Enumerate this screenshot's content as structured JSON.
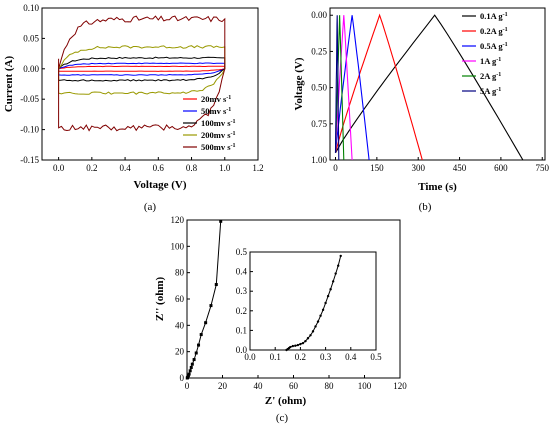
{
  "chart_data": [
    {
      "type": "line",
      "panel_label": "(a)",
      "xlabel": "Voltage (V)",
      "ylabel": "Current (A)",
      "xlim": [
        -0.1,
        1.2
      ],
      "ylim": [
        -0.15,
        0.1
      ],
      "x_ticks": [
        "0.0",
        "0.2",
        "0.4",
        "0.6",
        "0.8",
        "1.0",
        "1.2"
      ],
      "y_ticks": [
        "0.10",
        "0.05",
        "0.00",
        "-0.05",
        "-0.10",
        "-0.15"
      ],
      "legend": {
        "position": "bottom-right",
        "entries": [
          {
            "text": "20mv s",
            "sup": "-1"
          },
          {
            "text": "50mv s",
            "sup": "-1"
          },
          {
            "text": "100mv s",
            "sup": "-1"
          },
          {
            "text": "200mv s",
            "sup": "-1"
          },
          {
            "text": "500mv s",
            "sup": "-1"
          }
        ]
      },
      "series": [
        {
          "name": "20mv s-1",
          "color": "#ff0000",
          "upper": 0.004,
          "lower": -0.004
        },
        {
          "name": "50mv s-1",
          "color": "#0000ff",
          "upper": 0.009,
          "lower": -0.01
        },
        {
          "name": "100mv s-1",
          "color": "#000000",
          "upper": 0.018,
          "lower": -0.019
        },
        {
          "name": "200mv s-1",
          "color": "#999900",
          "upper": 0.036,
          "lower": -0.04
        },
        {
          "name": "500mv s-1",
          "color": "#800000",
          "upper": 0.082,
          "lower": -0.097
        }
      ]
    },
    {
      "type": "line",
      "panel_label": "(b)",
      "xlabel": "Time (s)",
      "ylabel": "Voltage (V)",
      "xlim": [
        -20,
        760
      ],
      "ylim": [
        0,
        1.05
      ],
      "x_ticks": [
        "0",
        "150",
        "300",
        "450",
        "600",
        "750"
      ],
      "y_ticks": [
        "0.00",
        "0.25",
        "0.50",
        "0.75",
        "1.00"
      ],
      "legend": {
        "position": "top-right",
        "entries": [
          {
            "text": "0.1A g",
            "sup": "-1"
          },
          {
            "text": "0.2A g",
            "sup": "-1"
          },
          {
            "text": "0.5A g",
            "sup": "-1"
          },
          {
            "text": "1A g",
            "sup": "-1"
          },
          {
            "text": "2A g",
            "sup": "-1"
          },
          {
            "text": "5A g",
            "sup": "-1"
          }
        ]
      },
      "series": [
        {
          "name": "0.1A g-1",
          "color": "#000000",
          "peak": 360,
          "end": 680
        },
        {
          "name": "0.2A g-1",
          "color": "#ff0000",
          "peak": 160,
          "end": 315
        },
        {
          "name": "0.5A g-1",
          "color": "#0000ff",
          "peak": 60,
          "end": 122
        },
        {
          "name": "1A g-1",
          "color": "#ff00ff",
          "peak": 30,
          "end": 60
        },
        {
          "name": "2A g-1",
          "color": "#008000",
          "peak": 15,
          "end": 30
        },
        {
          "name": "5A g-1",
          "color": "#000080",
          "peak": 6,
          "end": 12
        }
      ]
    },
    {
      "type": "scatter",
      "panel_label": "(c)",
      "xlabel": "Z' (ohm)",
      "ylabel": "Z'' (ohm)",
      "xlim": [
        0,
        120
      ],
      "ylim": [
        0,
        120
      ],
      "x_ticks": [
        "0",
        "20",
        "40",
        "60",
        "80",
        "100",
        "120"
      ],
      "y_ticks": [
        "0",
        "20",
        "40",
        "60",
        "80",
        "100",
        "120"
      ],
      "series": [
        {
          "name": "",
          "color": "#000000",
          "x": [
            0.15,
            0.3,
            0.5,
            0.8,
            1.2,
            1.8,
            2.4,
            3.0,
            4.0,
            5.2,
            6.5,
            8.0,
            10.5,
            13.5,
            16.5,
            19.0
          ],
          "y": [
            0.0,
            0.3,
            0.8,
            1.8,
            3.0,
            5.5,
            8.0,
            10.5,
            14.0,
            19.0,
            25.0,
            33.0,
            42.0,
            55.0,
            71.0,
            119.0
          ]
        }
      ],
      "inset": {
        "xlim": [
          0,
          0.5
        ],
        "ylim": [
          0,
          0.5
        ],
        "x_ticks": [
          "0.0",
          "0.1",
          "0.2",
          "0.3",
          "0.4",
          "0.5"
        ],
        "y_ticks": [
          "0.0",
          "0.1",
          "0.2",
          "0.3",
          "0.4",
          "0.5"
        ],
        "x": [
          0.145,
          0.15,
          0.155,
          0.16,
          0.17,
          0.18,
          0.19,
          0.2,
          0.21,
          0.22,
          0.23,
          0.24,
          0.25,
          0.26,
          0.27,
          0.28,
          0.29,
          0.3,
          0.31,
          0.32,
          0.33,
          0.34,
          0.35,
          0.36
        ],
        "y": [
          0.0,
          0.005,
          0.01,
          0.015,
          0.02,
          0.022,
          0.025,
          0.03,
          0.035,
          0.045,
          0.06,
          0.075,
          0.095,
          0.12,
          0.145,
          0.175,
          0.205,
          0.24,
          0.275,
          0.31,
          0.35,
          0.39,
          0.43,
          0.48
        ]
      }
    }
  ]
}
